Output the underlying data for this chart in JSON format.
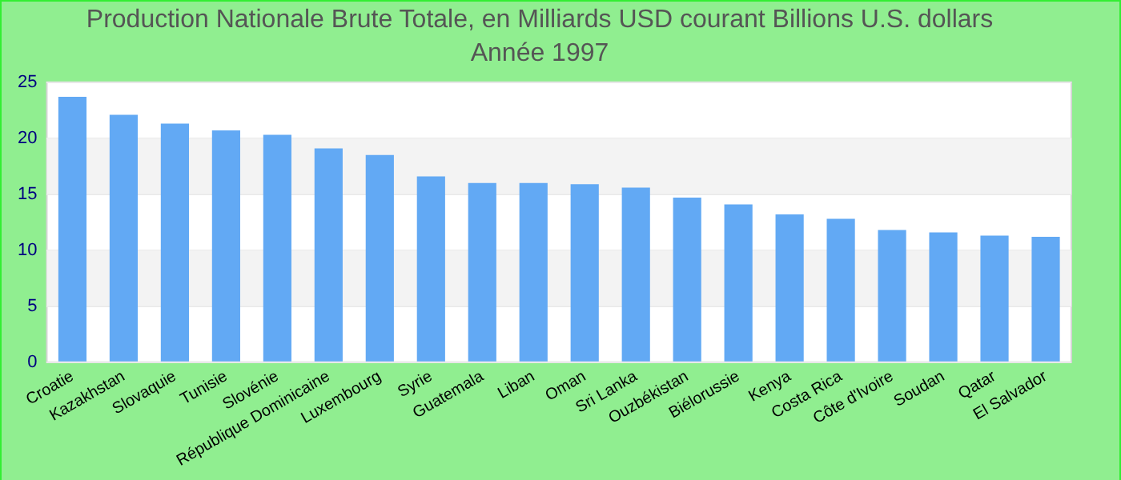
{
  "chart_data": {
    "type": "bar",
    "title": "Production Nationale Brute Totale, en Milliards USD courant Billions U.S. dollars",
    "subtitle": "Année 1997",
    "categories": [
      "Croatie",
      "Kazakhstan",
      "Slovaquie",
      "Tunisie",
      "Slovénie",
      "République Dominicaine",
      "Luxembourg",
      "Syrie",
      "Guatemala",
      "Liban",
      "Oman",
      "Sri Lanka",
      "Ouzbékistan",
      "Biélorussie",
      "Kenya",
      "Costa Rica",
      "Côte d'Ivoire",
      "Soudan",
      "Qatar",
      "El Salvador"
    ],
    "values": [
      23.7,
      22.1,
      21.3,
      20.7,
      20.3,
      19.1,
      18.5,
      16.6,
      16.0,
      16.0,
      15.9,
      15.6,
      14.7,
      14.1,
      13.2,
      12.8,
      11.8,
      11.6,
      11.3,
      11.2
    ],
    "color": "#62a9f4",
    "ylim": [
      0,
      25
    ],
    "yticks": [
      0,
      5,
      10,
      15,
      20,
      25
    ],
    "grid": "y",
    "legend": false
  }
}
